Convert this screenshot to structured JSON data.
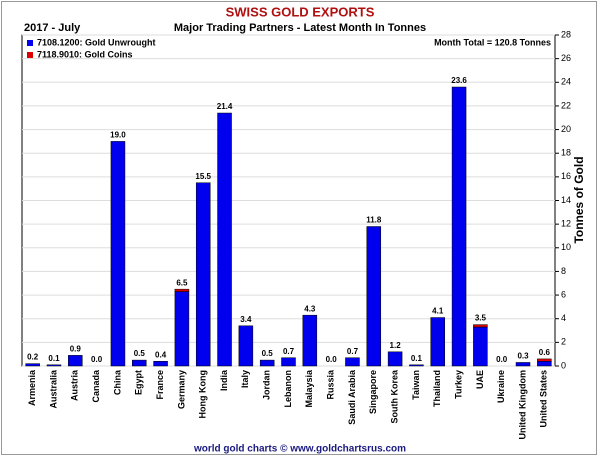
{
  "chart_data": {
    "type": "stacked_bar",
    "title": "SWISS GOLD EXPORTS",
    "subtitle": "Major Trading Partners - Latest Month In Tonnes",
    "period": "2017 - July",
    "annotation": "Month Total = 120.8 Tonnes",
    "y_label": "Tonnes of Gold",
    "footer": "world gold charts © www.goldchartsrus.com",
    "categories": [
      "Armenia",
      "Australia",
      "Austria",
      "Canada",
      "China",
      "Egypt",
      "France",
      "Germany",
      "Hong Kong",
      "India",
      "Italy",
      "Jordan",
      "Lebanon",
      "Malaysia",
      "Russia",
      "Saudi Arabia",
      "Singapore",
      "South Korea",
      "Taiwan",
      "Thailand",
      "Turkey",
      "UAE",
      "Ukraine",
      "United Kingdom",
      "United States"
    ],
    "series": [
      {
        "name": "7108.1200: Gold Unwrought",
        "color": "#0000ee",
        "values": [
          0.2,
          0.1,
          0.9,
          0.0,
          19.0,
          0.5,
          0.4,
          6.3,
          15.5,
          21.4,
          3.4,
          0.5,
          0.7,
          4.3,
          0.0,
          0.7,
          11.8,
          1.2,
          0.1,
          4.1,
          23.6,
          3.3,
          0.0,
          0.3,
          0.4
        ]
      },
      {
        "name": "7118.9010: Gold Coins",
        "color": "#dd0000",
        "values": [
          0,
          0,
          0,
          0,
          0,
          0,
          0,
          0.2,
          0,
          0,
          0,
          0,
          0,
          0,
          0,
          0,
          0,
          0,
          0,
          0,
          0,
          0.2,
          0,
          0,
          0.2
        ]
      }
    ],
    "value_labels": [
      "0.2",
      "0.1",
      "0.9",
      "0.0",
      "19.0",
      "0.5",
      "0.4",
      "6.5",
      "15.5",
      "21.4",
      "3.4",
      "0.5",
      "0.7",
      "4.3",
      "0.0",
      "0.7",
      "11.8",
      "1.2",
      "0.1",
      "4.1",
      "23.6",
      "3.5",
      "0.0",
      "0.3",
      "0.6"
    ],
    "ylim": [
      0,
      28
    ],
    "yticks": [
      0,
      2,
      4,
      6,
      8,
      10,
      12,
      14,
      16,
      18,
      20,
      22,
      24,
      26,
      28
    ],
    "grid": true,
    "legend": "top-left"
  }
}
